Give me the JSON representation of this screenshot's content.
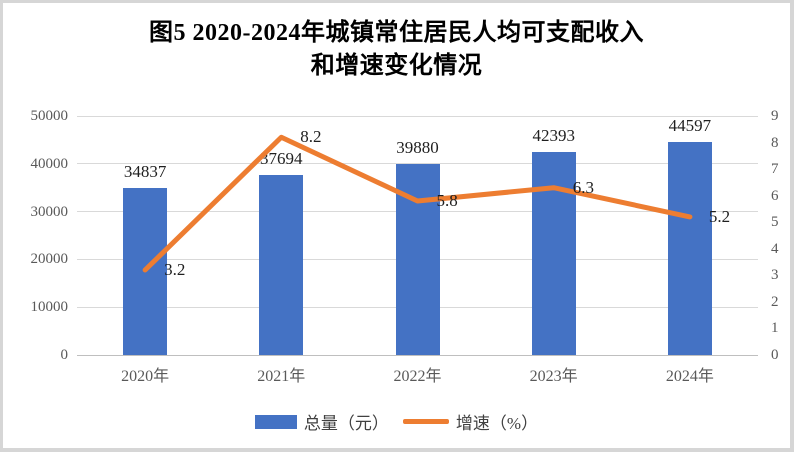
{
  "title": {
    "line1": "图5  2020-2024年城镇常住居民人均可支配收入",
    "line2": "和增速变化情况"
  },
  "chart_data": {
    "type": "combo-bar-line",
    "title": "图5 2020-2024年城镇常住居民人均可支配收入和增速变化情况",
    "categories": [
      "2020年",
      "2021年",
      "2022年",
      "2023年",
      "2024年"
    ],
    "series": [
      {
        "name": "总量（元）",
        "type": "bar",
        "axis": "left",
        "color": "#4472C4",
        "values": [
          34837,
          37694,
          39880,
          42393,
          44597
        ]
      },
      {
        "name": "增速（%）",
        "type": "line",
        "axis": "right",
        "color": "#ED7D31",
        "values": [
          3.2,
          8.2,
          5.8,
          6.3,
          5.2
        ]
      }
    ],
    "left_axis": {
      "min": 0,
      "max": 50000,
      "step": 10000,
      "ticks": [
        "0",
        "10000",
        "20000",
        "30000",
        "40000",
        "50000"
      ]
    },
    "right_axis": {
      "min": 0,
      "max": 9,
      "step": 1,
      "ticks": [
        "0",
        "1",
        "2",
        "3",
        "4",
        "5",
        "6",
        "7",
        "8",
        "9"
      ]
    },
    "grid": true,
    "legend_position": "bottom"
  },
  "colors": {
    "bar": "#4472C4",
    "line": "#ED7D31",
    "grid": "#D9D9D9",
    "axis_text": "#595959",
    "data_label_text": "#1f1f1f",
    "title_text": "#000000"
  }
}
